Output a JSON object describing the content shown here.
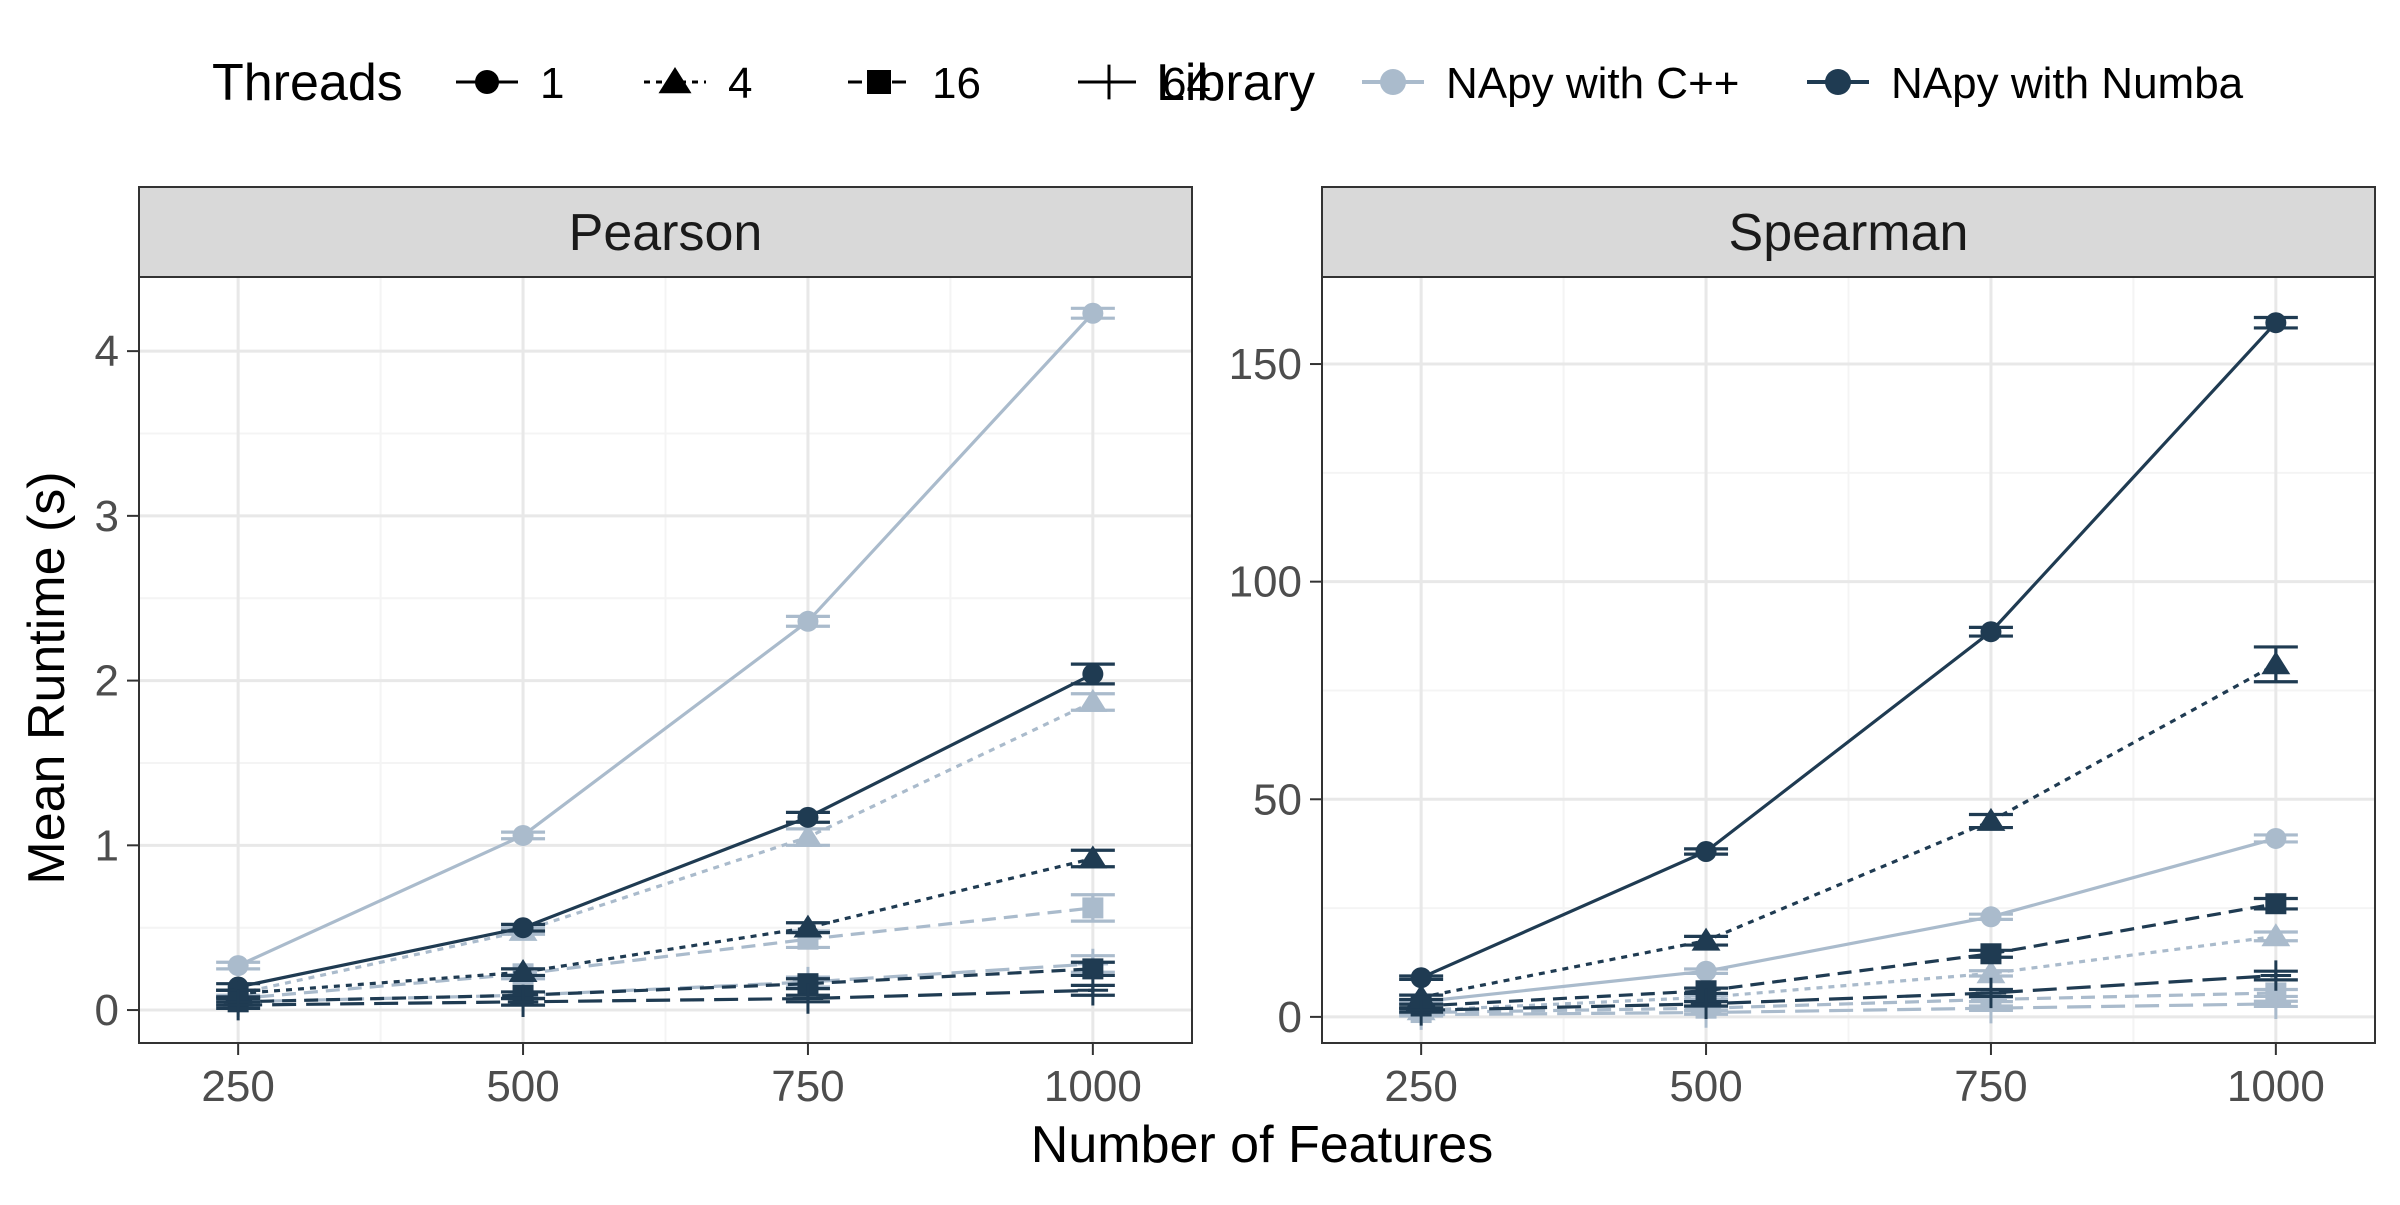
{
  "colors": {
    "cpp": "#aabbcc",
    "numba": "#1f3b52",
    "grid_major": "#e8e8e8",
    "grid_minor": "#f4f4f4",
    "strip_bg": "#d9d9d9",
    "panel_border": "#333333"
  },
  "legend": {
    "threads_title": "Threads",
    "threads_entries": [
      {
        "label": "1",
        "shape": "circle",
        "dash": "solid"
      },
      {
        "label": "4",
        "shape": "triangle",
        "dash": "dotted"
      },
      {
        "label": "16",
        "shape": "square",
        "dash": "dashed"
      },
      {
        "label": "64",
        "shape": "plus",
        "dash": "longdash"
      }
    ],
    "library_title": "Library",
    "library_entries": [
      {
        "label": "NApy with C++",
        "color_key": "cpp"
      },
      {
        "label": "NApy with Numba",
        "color_key": "numba"
      }
    ]
  },
  "chart_data": {
    "type": "line",
    "xlabel": "Number of Features",
    "ylabel": "Mean Runtime (s)",
    "x": [
      250,
      500,
      750,
      1000
    ],
    "x_ticks": [
      "250",
      "500",
      "750",
      "1000"
    ],
    "panels": [
      {
        "title": "Pearson",
        "ylim": [
          -0.2,
          4.45
        ],
        "y_ticks": [
          0,
          1,
          2,
          3,
          4
        ],
        "y_tick_labels": [
          "0",
          "1",
          "2",
          "3",
          "4"
        ],
        "series": [
          {
            "library": "NApy with C++",
            "threads": "1",
            "values": [
              0.27,
              1.06,
              2.36,
              4.23
            ],
            "err": [
              0.02,
              0.02,
              0.03,
              0.03
            ]
          },
          {
            "library": "NApy with C++",
            "threads": "4",
            "values": [
              0.1,
              0.48,
              1.05,
              1.87
            ],
            "err": [
              0.02,
              0.02,
              0.05,
              0.05
            ]
          },
          {
            "library": "NApy with C++",
            "threads": "16",
            "values": [
              0.07,
              0.22,
              0.43,
              0.62
            ],
            "err": [
              0.02,
              0.03,
              0.05,
              0.08
            ]
          },
          {
            "library": "NApy with C++",
            "threads": "64",
            "values": [
              0.05,
              0.09,
              0.17,
              0.28
            ],
            "err": [
              0.02,
              0.02,
              0.03,
              0.05
            ]
          },
          {
            "library": "NApy with Numba",
            "threads": "1",
            "values": [
              0.14,
              0.5,
              1.17,
              2.04
            ],
            "err": [
              0.02,
              0.02,
              0.03,
              0.06
            ]
          },
          {
            "library": "NApy with Numba",
            "threads": "4",
            "values": [
              0.1,
              0.23,
              0.5,
              0.92
            ],
            "err": [
              0.02,
              0.02,
              0.03,
              0.05
            ]
          },
          {
            "library": "NApy with Numba",
            "threads": "16",
            "values": [
              0.05,
              0.09,
              0.16,
              0.25
            ],
            "err": [
              0.02,
              0.02,
              0.03,
              0.04
            ]
          },
          {
            "library": "NApy with Numba",
            "threads": "64",
            "values": [
              0.03,
              0.05,
              0.07,
              0.12
            ],
            "err": [
              0.02,
              0.02,
              0.02,
              0.03
            ]
          }
        ]
      },
      {
        "title": "Spearman",
        "ylim": [
          -6,
          170
        ],
        "y_ticks": [
          0,
          50,
          100,
          150
        ],
        "y_tick_labels": [
          "0",
          "50",
          "100",
          "150"
        ],
        "series": [
          {
            "library": "NApy with C++",
            "threads": "1",
            "values": [
              3.5,
              10.5,
              23,
              41
            ],
            "err": [
              0.3,
              0.5,
              0.6,
              0.8
            ]
          },
          {
            "library": "NApy with C++",
            "threads": "4",
            "values": [
              1.5,
              4.5,
              10,
              18.5
            ],
            "err": [
              0.3,
              0.4,
              0.6,
              1.0
            ]
          },
          {
            "library": "NApy with C++",
            "threads": "16",
            "values": [
              1,
              2,
              4,
              5.5
            ],
            "err": [
              0.3,
              0.4,
              0.5,
              0.8
            ]
          },
          {
            "library": "NApy with C++",
            "threads": "64",
            "values": [
              0.5,
              1,
              2,
              3
            ],
            "err": [
              0.3,
              0.4,
              0.5,
              0.6
            ]
          },
          {
            "library": "NApy with Numba",
            "threads": "1",
            "values": [
              9,
              38,
              88.5,
              159.5
            ],
            "err": [
              0.4,
              0.6,
              1.0,
              1.2
            ]
          },
          {
            "library": "NApy with Numba",
            "threads": "4",
            "values": [
              4.5,
              17.5,
              45,
              81
            ],
            "err": [
              0.5,
              1.0,
              1.5,
              4.0
            ]
          },
          {
            "library": "NApy with Numba",
            "threads": "16",
            "values": [
              2.5,
              6,
              14.5,
              26
            ],
            "err": [
              0.4,
              0.6,
              0.8,
              1.2
            ]
          },
          {
            "library": "NApy with Numba",
            "threads": "64",
            "values": [
              1.5,
              3,
              5.5,
              9.5
            ],
            "err": [
              0.4,
              0.5,
              0.8,
              1.0
            ]
          }
        ]
      }
    ]
  }
}
